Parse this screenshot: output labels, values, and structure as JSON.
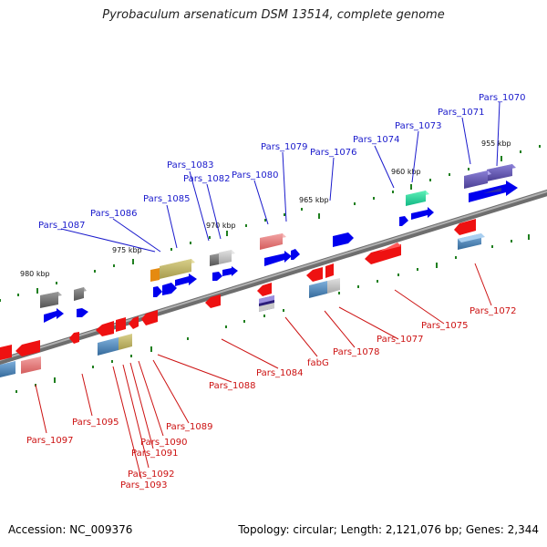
{
  "title": "Pyrobaculum arsenaticum DSM 13514, complete genome",
  "accession": "Accession: NC_009376",
  "summary": "Topology: circular; Length: 2,121,076 bp; Genes: 2,344",
  "colors": {
    "forward_label": "#1a1acc",
    "reverse_label": "#cc1111",
    "backbone": "#888888",
    "tick": "#1f7f1f"
  },
  "position_labels": [
    "955 kbp",
    "960 kbp",
    "965 kbp",
    "970 kbp",
    "975 kbp",
    "980 kbp"
  ],
  "forward_labels": [
    "Pars_1070",
    "Pars_1071",
    "Pars_1073",
    "Pars_1074",
    "Pars_1076",
    "Pars_1079",
    "Pars_1080",
    "Pars_1082",
    "Pars_1083",
    "Pars_1085",
    "Pars_1086",
    "Pars_1087"
  ],
  "reverse_labels": [
    "Pars_1072",
    "Pars_1075",
    "Pars_1077",
    "Pars_1078",
    "fabG",
    "Pars_1084",
    "Pars_1088",
    "Pars_1089",
    "Pars_1090",
    "Pars_1091",
    "Pars_1092",
    "Pars_1093",
    "Pars_1095",
    "Pars_1097"
  ]
}
